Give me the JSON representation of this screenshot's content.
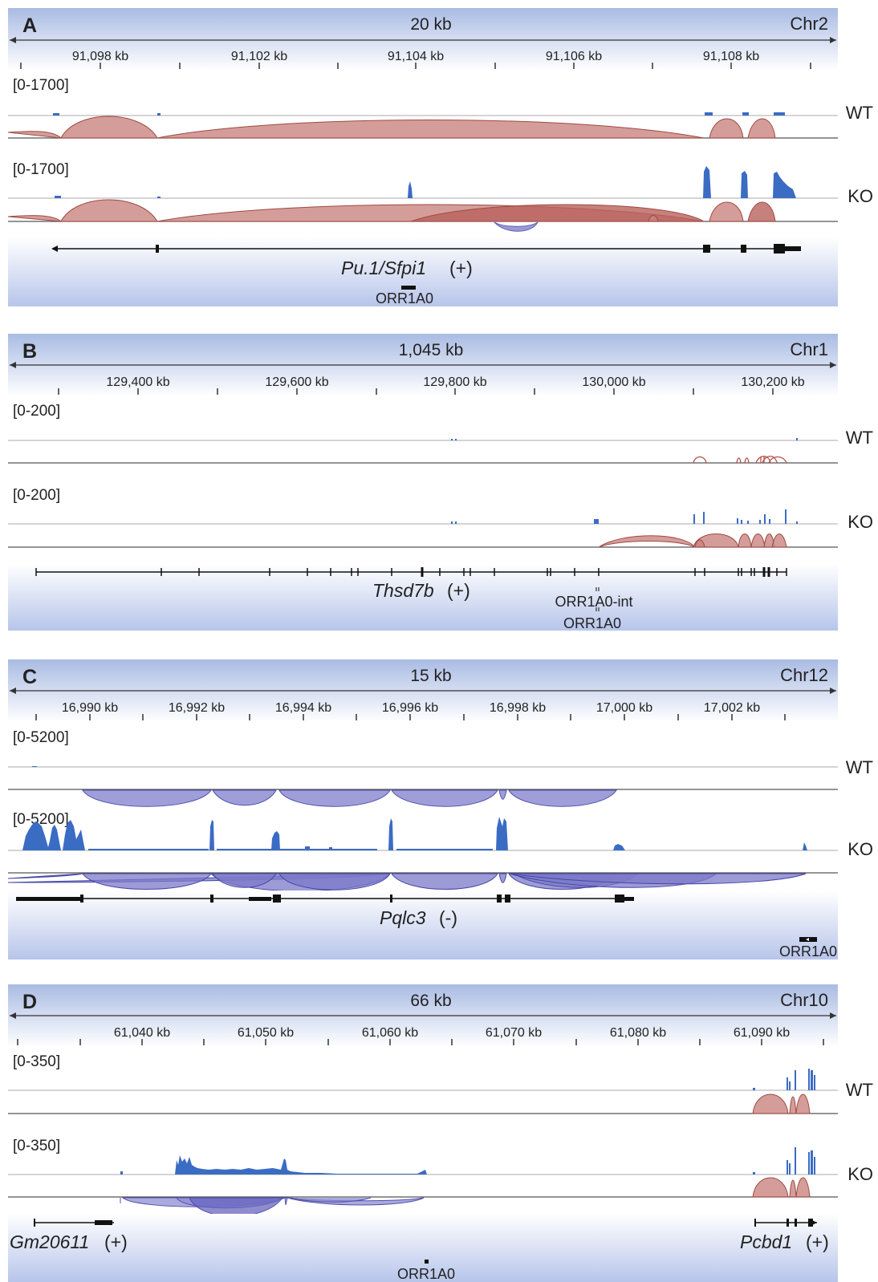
{
  "panels": [
    {
      "letter": "A",
      "span": "20 kb",
      "chrom": "Chr2",
      "ticks": [
        "91,098 kb",
        "91,102 kb",
        "91,104 kb",
        "91,106 kb",
        "91,108 kb"
      ],
      "tracks": [
        {
          "range": "[0-1700]",
          "sample": "WT"
        },
        {
          "range": "[0-1700]",
          "sample": "KO"
        }
      ],
      "genes": [
        {
          "name": "Pu.1/Sfpi1",
          "strand": "(+)"
        }
      ],
      "annotations": [
        "ORR1A0"
      ]
    },
    {
      "letter": "B",
      "span": "1,045 kb",
      "chrom": "Chr1",
      "ticks": [
        "129,400 kb",
        "129,600 kb",
        "129,800 kb",
        "130,000 kb",
        "130,200 kb"
      ],
      "tracks": [
        {
          "range": "[0-200]",
          "sample": "WT"
        },
        {
          "range": "[0-200]",
          "sample": "KO"
        }
      ],
      "genes": [
        {
          "name": "Thsd7b",
          "strand": "(+)"
        }
      ],
      "annotations": [
        "ORR1A0-int",
        "ORR1A0"
      ]
    },
    {
      "letter": "C",
      "span": "15 kb",
      "chrom": "Chr12",
      "ticks": [
        "16,990 kb",
        "16,992 kb",
        "16,994 kb",
        "16,996 kb",
        "16,998 kb",
        "17,000 kb",
        "17,002 kb"
      ],
      "tracks": [
        {
          "range": "[0-5200]",
          "sample": "WT"
        },
        {
          "range": "[0-5200]",
          "sample": "KO"
        }
      ],
      "genes": [
        {
          "name": "Pqlc3",
          "strand": "(-)"
        }
      ],
      "annotations": [
        "ORR1A0"
      ]
    },
    {
      "letter": "D",
      "span": "66 kb",
      "chrom": "Chr10",
      "ticks": [
        "61,040 kb",
        "61,050 kb",
        "61,060 kb",
        "61,070 kb",
        "61,080 kb",
        "61,090 kb"
      ],
      "tracks": [
        {
          "range": "[0-350]",
          "sample": "WT"
        },
        {
          "range": "[0-350]",
          "sample": "KO"
        }
      ],
      "genes": [
        {
          "name": "Gm20611",
          "strand": "(+)"
        },
        {
          "name": "Pcbd1",
          "strand": "(+)"
        }
      ],
      "annotations": [
        "ORR1A0"
      ]
    }
  ],
  "colors": {
    "coverage": "#3b6cc4",
    "junction_plus": "#b5524a",
    "junction_minus": "#5b5bb8",
    "ruler_bg": "#b8c6e6",
    "gene_bg": "#c6d1ee"
  }
}
